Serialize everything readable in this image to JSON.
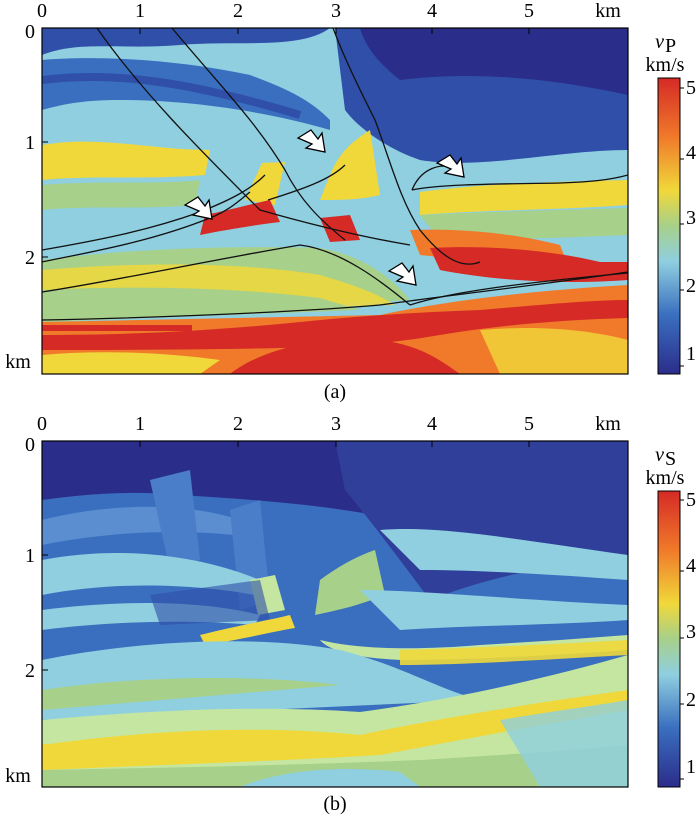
{
  "figure": {
    "panels": [
      {
        "id": "a",
        "caption": "(a)",
        "x_ticks": [
          "0",
          "1",
          "2",
          "3",
          "4",
          "5"
        ],
        "x_unit": "km",
        "y_ticks": [
          "0",
          "1",
          "2"
        ],
        "y_unit": "km",
        "colorbar": {
          "symbol": "v",
          "subscript": "P",
          "unit": "km/s",
          "ticks": [
            "1",
            "2",
            "3",
            "4",
            "5"
          ]
        }
      },
      {
        "id": "b",
        "caption": "(b)",
        "x_ticks": [
          "0",
          "1",
          "2",
          "3",
          "4",
          "5"
        ],
        "x_unit": "km",
        "y_ticks": [
          "0",
          "1",
          "2"
        ],
        "y_unit": "km",
        "colorbar": {
          "symbol": "v",
          "subscript": "S",
          "unit": "km/s",
          "ticks": [
            "1",
            "2",
            "3",
            "4",
            "5"
          ]
        }
      }
    ],
    "colors": {
      "jet_dark_blue": "#2b2d8a",
      "jet_blue": "#3a6fbf",
      "jet_cyan": "#8fcfe0",
      "jet_green": "#a7d08a",
      "jet_yellow": "#f0d83a",
      "jet_orange": "#f07a2a",
      "jet_red": "#d52a26"
    }
  }
}
